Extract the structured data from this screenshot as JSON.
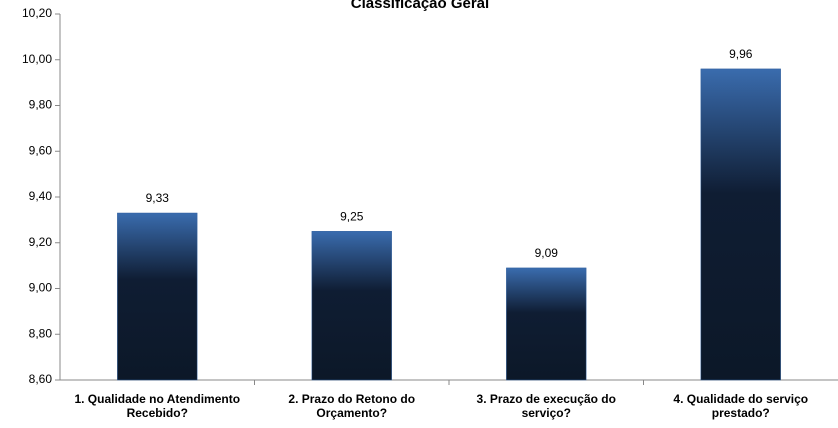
{
  "chart_data": {
    "type": "bar",
    "title": "Classificação Geral",
    "categories": [
      "1. Qualidade no Atendimento Recebido?",
      "2. Prazo do Retono do Orçamento?",
      "3. Prazo de execução do serviço?",
      "4. Qualidade do serviço prestado?"
    ],
    "values": [
      9.33,
      9.25,
      9.09,
      9.96
    ],
    "value_labels": [
      "9,33",
      "9,25",
      "9,09",
      "9,96"
    ],
    "color": "#2f5f9e",
    "ylim": [
      8.6,
      10.2
    ],
    "yticks": [
      {
        "value": 8.6,
        "label": "8,60"
      },
      {
        "value": 8.8,
        "label": "8,80"
      },
      {
        "value": 9.0,
        "label": "9,00"
      },
      {
        "value": 9.2,
        "label": "9,20"
      },
      {
        "value": 9.4,
        "label": "9,40"
      },
      {
        "value": 9.6,
        "label": "9,60"
      },
      {
        "value": 9.8,
        "label": "9,80"
      },
      {
        "value": 10.0,
        "label": "10,00"
      },
      {
        "value": 10.2,
        "label": "10,20"
      }
    ],
    "grid": false
  }
}
